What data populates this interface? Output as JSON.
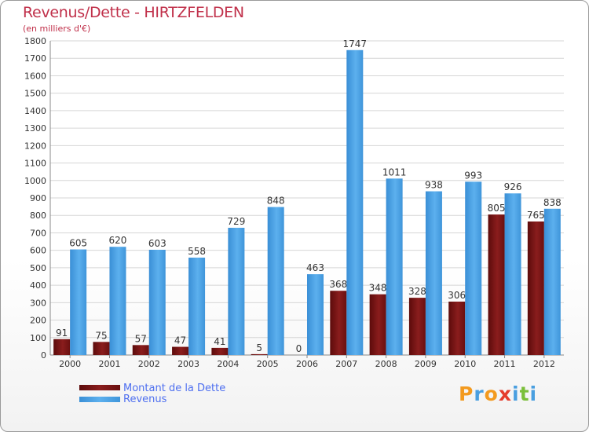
{
  "chart_data": {
    "type": "bar",
    "title": "Revenus/Dette - HIRTZFELDEN",
    "subtitle": "(en milliers d'€)",
    "xlabel": "",
    "ylabel": "",
    "ylim": [
      0,
      1800
    ],
    "yticks": [
      0,
      100,
      200,
      300,
      400,
      500,
      600,
      700,
      800,
      900,
      1000,
      1100,
      1200,
      1300,
      1400,
      1500,
      1600,
      1700,
      1800
    ],
    "grid": true,
    "categories": [
      "2000",
      "2001",
      "2002",
      "2003",
      "2004",
      "2005",
      "2006",
      "2007",
      "2008",
      "2009",
      "2010",
      "2011",
      "2012"
    ],
    "series": [
      {
        "name": "Montant de la Dette",
        "color": "#7a1515",
        "values": [
          91,
          75,
          57,
          47,
          41,
          5,
          0,
          368,
          348,
          328,
          306,
          805,
          765
        ]
      },
      {
        "name": "Revenus",
        "color": "#4ea1e4",
        "values": [
          605,
          620,
          603,
          558,
          729,
          848,
          463,
          1747,
          1011,
          938,
          993,
          926,
          838
        ]
      }
    ],
    "legend_position": "bottom-left"
  },
  "logo": {
    "text": "Proxiti",
    "letters": [
      {
        "char": "P",
        "color": "#f39a1f"
      },
      {
        "char": "r",
        "color": "#4a9fe0"
      },
      {
        "char": "o",
        "color": "#f39a1f"
      },
      {
        "char": "x",
        "color": "#e53b2c"
      },
      {
        "char": "i",
        "color": "#4a9fe0"
      },
      {
        "char": "t",
        "color": "#7bbf3a"
      },
      {
        "char": "i",
        "color": "#4a9fe0"
      }
    ]
  }
}
